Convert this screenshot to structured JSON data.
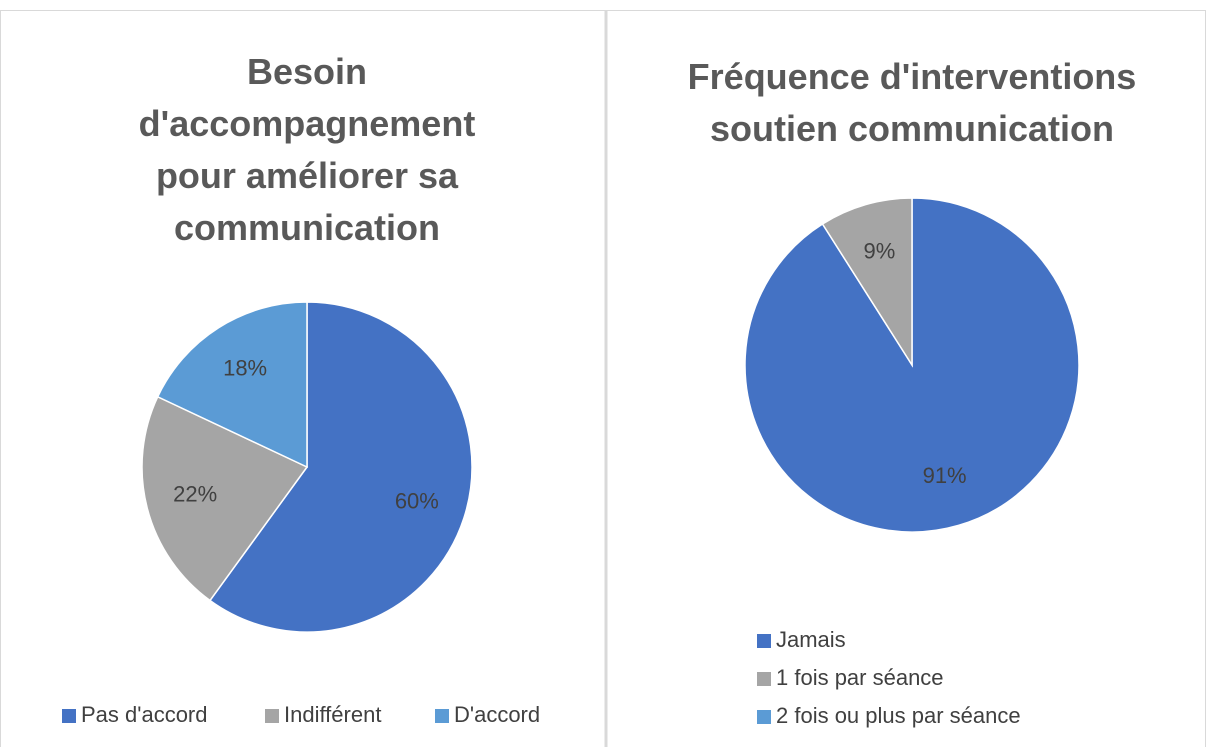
{
  "chart_data": [
    {
      "type": "pie",
      "title": "Besoin d'accompagnement pour améliorer sa communication",
      "categories": [
        "Pas d'accord",
        "Indifférent",
        "D'accord"
      ],
      "values": [
        60,
        22,
        18
      ],
      "value_labels": [
        "60%",
        "22%",
        "18%"
      ],
      "colors": [
        "#4472c4",
        "#a5a5a5",
        "#5b9bd5"
      ],
      "legend": "bottom",
      "legend_orientation": "horizontal"
    },
    {
      "type": "pie",
      "title": "Fréquence d'interventions soutien communication",
      "categories": [
        "Jamais",
        "1 fois par séance",
        "2 fois ou plus par séance"
      ],
      "values": [
        91,
        9,
        0
      ],
      "value_labels": [
        "91%",
        "9%",
        null
      ],
      "colors": [
        "#4472c4",
        "#a5a5a5",
        "#5b9bd5"
      ],
      "legend": "bottom",
      "legend_orientation": "vertical"
    }
  ]
}
